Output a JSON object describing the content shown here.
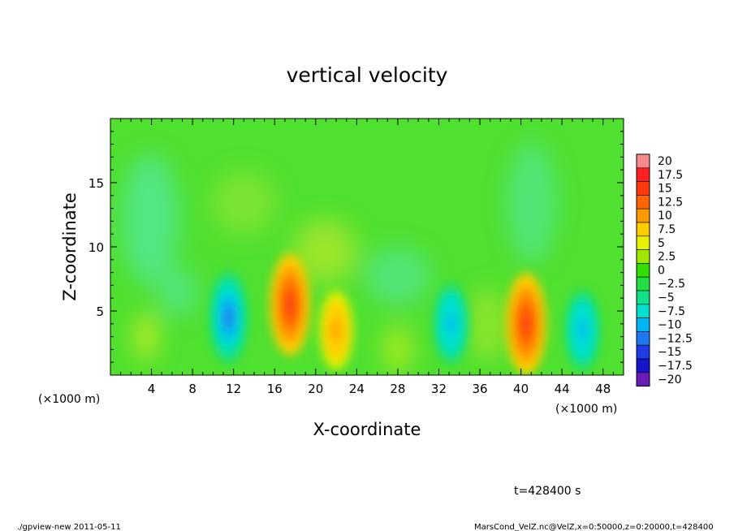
{
  "chart_data": {
    "type": "heatmap",
    "title": "vertical velocity",
    "xlabel": "X-coordinate",
    "ylabel": "Z-coordinate",
    "x_unit_left": "(×1000 m)",
    "x_unit_right": "(×1000 m)",
    "xlim": [
      0,
      50
    ],
    "ylim": [
      0,
      20
    ],
    "x_ticks": [
      "4",
      "8",
      "12",
      "16",
      "20",
      "24",
      "28",
      "32",
      "36",
      "40",
      "44",
      "48"
    ],
    "y_ticks": [
      "5",
      "10",
      "15"
    ],
    "colorbar": {
      "labels": [
        "20",
        "17.5",
        "15",
        "12.5",
        "10",
        "7.5",
        "5",
        "2.5",
        "0",
        "−2.5",
        "−5",
        "−7.5",
        "−10",
        "−12.5",
        "−15",
        "−17.5",
        "−20"
      ],
      "levels": [
        20,
        17.5,
        15,
        12.5,
        10,
        7.5,
        5,
        2.5,
        0,
        -2.5,
        -5,
        -7.5,
        -10,
        -12.5,
        -15,
        -17.5,
        -20
      ],
      "colors": [
        "#f58c8c",
        "#ff2020",
        "#ff3a10",
        "#ff6600",
        "#ff9900",
        "#ffcc00",
        "#e6f000",
        "#a0e600",
        "#33dd00",
        "#22dd44",
        "#11e088",
        "#00e0d0",
        "#00b4f0",
        "#1e78f0",
        "#1e3ce6",
        "#1414c8",
        "#6a1ab8"
      ]
    },
    "features": [
      {
        "x": 11.5,
        "z": 4.5,
        "value": -12.5
      },
      {
        "x": 17.5,
        "z": 5.5,
        "value": 15
      },
      {
        "x": 22,
        "z": 3.5,
        "value": 10
      },
      {
        "x": 33.2,
        "z": 4,
        "value": -10
      },
      {
        "x": 40.5,
        "z": 4,
        "value": 15
      },
      {
        "x": 46,
        "z": 3.5,
        "value": -10
      }
    ],
    "grid": false,
    "legend": "right"
  },
  "annotations": {
    "time": "t=428400 s",
    "footer_left": "./gpview-new  2011-05-11",
    "footer_right": "MarsCond_VelZ.nc@VelZ,x=0:50000,z=0:20000,t=428400"
  }
}
